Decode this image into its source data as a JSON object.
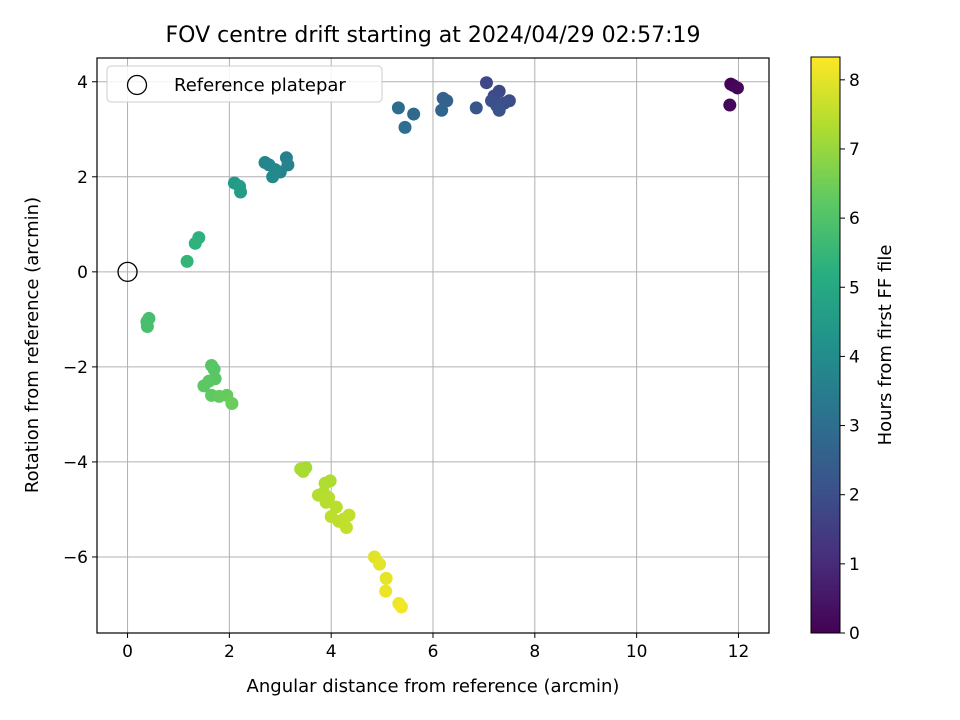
{
  "chart_data": {
    "type": "scatter",
    "title": "FOV centre drift starting at 2024/04/29 02:57:19",
    "xlabel": "Angular distance from reference (arcmin)",
    "ylabel": "Rotation from reference (arcmin)",
    "xlim": [
      -0.6,
      12.6
    ],
    "ylim": [
      -7.6,
      4.5
    ],
    "xticks": [
      0,
      2,
      4,
      6,
      8,
      10,
      12
    ],
    "xtick_labels": [
      "0",
      "2",
      "4",
      "6",
      "8",
      "10",
      "12"
    ],
    "yticks": [
      -6,
      -4,
      -2,
      0,
      2,
      4
    ],
    "ytick_labels": [
      "−6",
      "−4",
      "−2",
      "0",
      "2",
      "4"
    ],
    "grid": true,
    "legend": {
      "position": "top-left",
      "entries": [
        "Reference platepar"
      ]
    },
    "reference_point": {
      "x": 0,
      "y": 0
    },
    "colorbar": {
      "label": "Hours from first FF file",
      "colormap": "viridis",
      "range": [
        0,
        8.33
      ],
      "ticks": [
        0,
        1,
        2,
        3,
        4,
        5,
        6,
        7,
        8
      ],
      "tick_labels": [
        "0",
        "1",
        "2",
        "3",
        "4",
        "5",
        "6",
        "7",
        "8"
      ]
    },
    "points": [
      {
        "x": 11.85,
        "y": 3.95,
        "c": 0.05
      },
      {
        "x": 11.9,
        "y": 3.92,
        "c": 0.1
      },
      {
        "x": 11.98,
        "y": 3.87,
        "c": 0.15
      },
      {
        "x": 11.83,
        "y": 3.51,
        "c": 0.2
      },
      {
        "x": 7.05,
        "y": 3.98,
        "c": 1.8
      },
      {
        "x": 7.3,
        "y": 3.8,
        "c": 1.85
      },
      {
        "x": 7.2,
        "y": 3.7,
        "c": 1.9
      },
      {
        "x": 7.5,
        "y": 3.6,
        "c": 1.95
      },
      {
        "x": 7.4,
        "y": 3.55,
        "c": 2.0
      },
      {
        "x": 7.15,
        "y": 3.6,
        "c": 2.0
      },
      {
        "x": 7.25,
        "y": 3.5,
        "c": 2.05
      },
      {
        "x": 7.3,
        "y": 3.4,
        "c": 2.1
      },
      {
        "x": 6.85,
        "y": 3.45,
        "c": 2.2
      },
      {
        "x": 6.2,
        "y": 3.65,
        "c": 2.6
      },
      {
        "x": 6.27,
        "y": 3.6,
        "c": 2.65
      },
      {
        "x": 6.17,
        "y": 3.4,
        "c": 2.7
      },
      {
        "x": 5.62,
        "y": 3.32,
        "c": 2.8
      },
      {
        "x": 5.32,
        "y": 3.45,
        "c": 2.9
      },
      {
        "x": 5.45,
        "y": 3.04,
        "c": 3.0
      },
      {
        "x": 3.12,
        "y": 2.4,
        "c": 3.6
      },
      {
        "x": 3.15,
        "y": 2.25,
        "c": 3.65
      },
      {
        "x": 3.0,
        "y": 2.1,
        "c": 3.7
      },
      {
        "x": 2.7,
        "y": 2.3,
        "c": 3.75
      },
      {
        "x": 2.78,
        "y": 2.25,
        "c": 3.8
      },
      {
        "x": 2.9,
        "y": 2.15,
        "c": 3.85
      },
      {
        "x": 2.85,
        "y": 2.0,
        "c": 3.9
      },
      {
        "x": 2.1,
        "y": 1.87,
        "c": 4.5
      },
      {
        "x": 2.2,
        "y": 1.8,
        "c": 4.55
      },
      {
        "x": 2.22,
        "y": 1.68,
        "c": 4.6
      },
      {
        "x": 1.4,
        "y": 0.72,
        "c": 5.3
      },
      {
        "x": 1.33,
        "y": 0.6,
        "c": 5.35
      },
      {
        "x": 1.17,
        "y": 0.22,
        "c": 5.45
      },
      {
        "x": 0.42,
        "y": -0.98,
        "c": 5.8
      },
      {
        "x": 0.38,
        "y": -1.05,
        "c": 5.82
      },
      {
        "x": 0.39,
        "y": -1.15,
        "c": 5.85
      },
      {
        "x": 1.65,
        "y": -1.97,
        "c": 6.1
      },
      {
        "x": 1.7,
        "y": -2.05,
        "c": 6.12
      },
      {
        "x": 1.72,
        "y": -2.25,
        "c": 6.15
      },
      {
        "x": 1.6,
        "y": -2.3,
        "c": 6.18
      },
      {
        "x": 1.5,
        "y": -2.4,
        "c": 6.2
      },
      {
        "x": 1.65,
        "y": -2.6,
        "c": 6.25
      },
      {
        "x": 1.8,
        "y": -2.62,
        "c": 6.3
      },
      {
        "x": 1.95,
        "y": -2.6,
        "c": 6.35
      },
      {
        "x": 2.05,
        "y": -2.77,
        "c": 6.4
      },
      {
        "x": 3.5,
        "y": -4.12,
        "c": 7.2
      },
      {
        "x": 3.45,
        "y": -4.2,
        "c": 7.22
      },
      {
        "x": 3.4,
        "y": -4.15,
        "c": 7.25
      },
      {
        "x": 3.88,
        "y": -4.45,
        "c": 7.3
      },
      {
        "x": 3.98,
        "y": -4.4,
        "c": 7.32
      },
      {
        "x": 3.85,
        "y": -4.65,
        "c": 7.35
      },
      {
        "x": 3.75,
        "y": -4.7,
        "c": 7.38
      },
      {
        "x": 3.95,
        "y": -4.75,
        "c": 7.4
      },
      {
        "x": 3.9,
        "y": -4.85,
        "c": 7.42
      },
      {
        "x": 4.1,
        "y": -4.95,
        "c": 7.45
      },
      {
        "x": 4.0,
        "y": -5.15,
        "c": 7.48
      },
      {
        "x": 4.15,
        "y": -5.25,
        "c": 7.5
      },
      {
        "x": 4.25,
        "y": -5.2,
        "c": 7.52
      },
      {
        "x": 4.35,
        "y": -5.12,
        "c": 7.55
      },
      {
        "x": 4.3,
        "y": -5.38,
        "c": 7.58
      },
      {
        "x": 4.85,
        "y": -6.0,
        "c": 7.95
      },
      {
        "x": 4.95,
        "y": -6.15,
        "c": 8.0
      },
      {
        "x": 5.08,
        "y": -6.45,
        "c": 8.05
      },
      {
        "x": 5.07,
        "y": -6.72,
        "c": 8.1
      },
      {
        "x": 5.33,
        "y": -6.98,
        "c": 8.15
      },
      {
        "x": 5.38,
        "y": -7.05,
        "c": 8.2
      }
    ]
  }
}
